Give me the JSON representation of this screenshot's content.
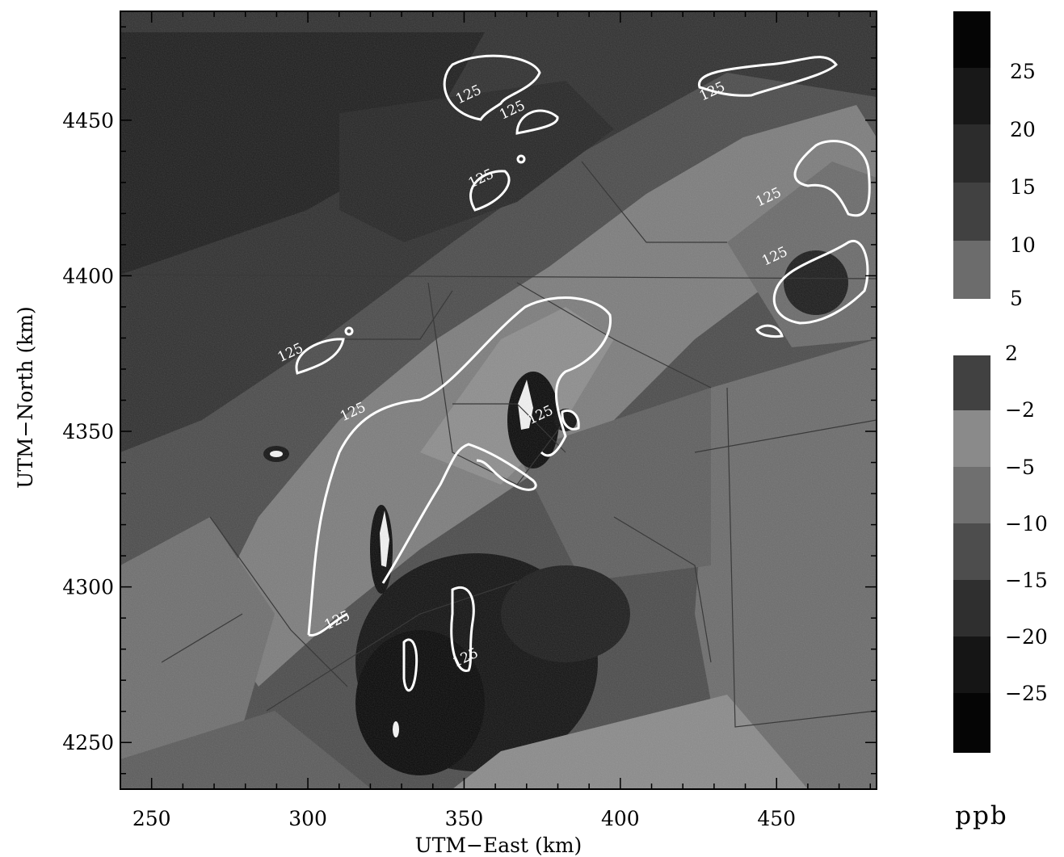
{
  "chart_data": {
    "type": "heatmap",
    "xlabel": "UTM−East (km)",
    "ylabel": "UTM−North (km)",
    "xlim": [
      240,
      482
    ],
    "ylim": [
      4235,
      4485
    ],
    "x_ticks": [
      250,
      300,
      350,
      400,
      450
    ],
    "y_ticks": [
      4250,
      4300,
      4350,
      4400,
      4450
    ],
    "colorbar_units": "ppb",
    "colorbar_upper_labels": [
      "25",
      "20",
      "15",
      "10",
      "5"
    ],
    "colorbar_lower_labels": [
      "2",
      "−2",
      "−5",
      "−10",
      "−15",
      "−20",
      "−25"
    ],
    "contour_level_label": "125",
    "contour_level": 125,
    "contour_label_positions": [
      {
        "x": 352,
        "y": 4457
      },
      {
        "x": 366,
        "y": 4452
      },
      {
        "x": 430,
        "y": 4458
      },
      {
        "x": 356,
        "y": 4430
      },
      {
        "x": 448,
        "y": 4424
      },
      {
        "x": 450,
        "y": 4405
      },
      {
        "x": 295,
        "y": 4374
      },
      {
        "x": 315,
        "y": 4355
      },
      {
        "x": 375,
        "y": 4354
      },
      {
        "x": 310,
        "y": 4288
      },
      {
        "x": 351,
        "y": 4276
      }
    ],
    "colors": {
      "background": "#ffffff",
      "contour": "#ffffff",
      "scale_dark": "#0d0d0d",
      "scale_mid": "#5a5a5a",
      "scale_light": "#8c8c8c"
    }
  }
}
